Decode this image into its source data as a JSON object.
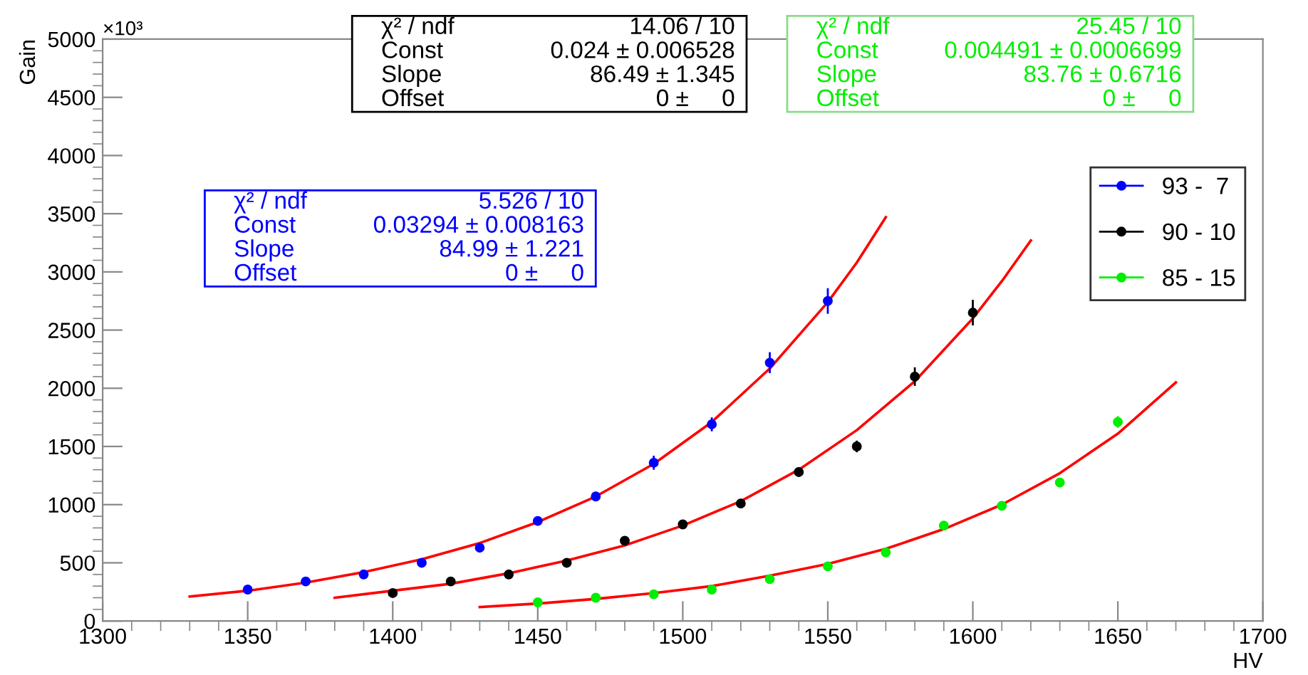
{
  "chart_data": {
    "type": "scatter",
    "xlabel": "HV",
    "ylabel": "Gain",
    "xlim": [
      1300,
      1700
    ],
    "xticks": [
      1300,
      1350,
      1400,
      1450,
      1500,
      1550,
      1600,
      1650,
      1700
    ],
    "ylim": [
      0,
      5000
    ],
    "yticks": [
      0,
      500,
      1000,
      1500,
      2000,
      2500,
      3000,
      3500,
      4000,
      4500,
      5000
    ],
    "grid": false,
    "legend": "top right",
    "marker": "circle",
    "annotations": [
      "×10³",
      "χ² / ndf",
      "14.06 / 10",
      "Const",
      "0.024 ± 0.006528",
      "Slope",
      "86.49 ± 1.345",
      "Offset",
      "0 ±     0",
      "χ² / ndf",
      "25.45 / 10",
      "Const",
      "0.004491 ± 0.0006699",
      "Slope",
      "83.76 ± 0.6716",
      "Offset",
      "0 ±     0",
      "χ² / ndf",
      "5.526 / 10",
      "Const",
      "0.03294 ± 0.008163",
      "Slope",
      "84.99 ± 1.221",
      "Offset",
      "0 ±     0"
    ],
    "series": [
      {
        "name": "93 -  7",
        "color": "#0000ff",
        "x": [
          1350,
          1370,
          1390,
          1410,
          1430,
          1450,
          1470,
          1490,
          1510,
          1530,
          1550
        ],
        "values": [
          270,
          340,
          400,
          500,
          630,
          860,
          1070,
          1360,
          1690,
          2220,
          2750
        ],
        "errors": [
          30,
          30,
          30,
          30,
          30,
          40,
          40,
          60,
          60,
          90,
          110
        ]
      },
      {
        "name": "90 - 10",
        "color": "#000000",
        "x": [
          1400,
          1420,
          1440,
          1460,
          1480,
          1500,
          1520,
          1540,
          1560,
          1580,
          1600
        ],
        "values": [
          240,
          340,
          400,
          500,
          690,
          830,
          1010,
          1280,
          1500,
          2100,
          2650
        ],
        "errors": [
          20,
          20,
          20,
          30,
          30,
          30,
          40,
          40,
          50,
          80,
          110
        ]
      },
      {
        "name": "85 - 15",
        "color": "#00ee00",
        "x": [
          1450,
          1470,
          1490,
          1510,
          1530,
          1550,
          1570,
          1590,
          1610,
          1630,
          1650
        ],
        "values": [
          160,
          200,
          230,
          270,
          360,
          470,
          590,
          820,
          990,
          1190,
          1710
        ],
        "errors": [
          20,
          20,
          20,
          20,
          30,
          30,
          30,
          40,
          40,
          40,
          50
        ]
      },
      {
        "type": "line",
        "marker": "none",
        "color": "#ff0000",
        "x": [
          1330,
          1350,
          1370,
          1390,
          1410,
          1430,
          1450,
          1470,
          1490,
          1510,
          1530,
          1550,
          1560,
          1570
        ],
        "values": [
          210,
          260,
          330,
          420,
          530,
          670,
          850,
          1070,
          1350,
          1710,
          2170,
          2740,
          3080,
          3470
        ]
      },
      {
        "type": "line",
        "marker": "none",
        "color": "#ff0000",
        "x": [
          1380,
          1400,
          1420,
          1440,
          1460,
          1480,
          1500,
          1520,
          1540,
          1560,
          1580,
          1600,
          1610,
          1620
        ],
        "values": [
          200,
          260,
          320,
          410,
          520,
          650,
          820,
          1030,
          1300,
          1640,
          2060,
          2600,
          2920,
          3270
        ]
      },
      {
        "type": "line",
        "marker": "none",
        "color": "#ff0000",
        "x": [
          1430,
          1450,
          1470,
          1490,
          1510,
          1530,
          1550,
          1570,
          1590,
          1610,
          1630,
          1650,
          1670
        ],
        "values": [
          120,
          150,
          190,
          240,
          300,
          390,
          490,
          620,
          790,
          1000,
          1270,
          1610,
          2050
        ]
      }
    ]
  }
}
